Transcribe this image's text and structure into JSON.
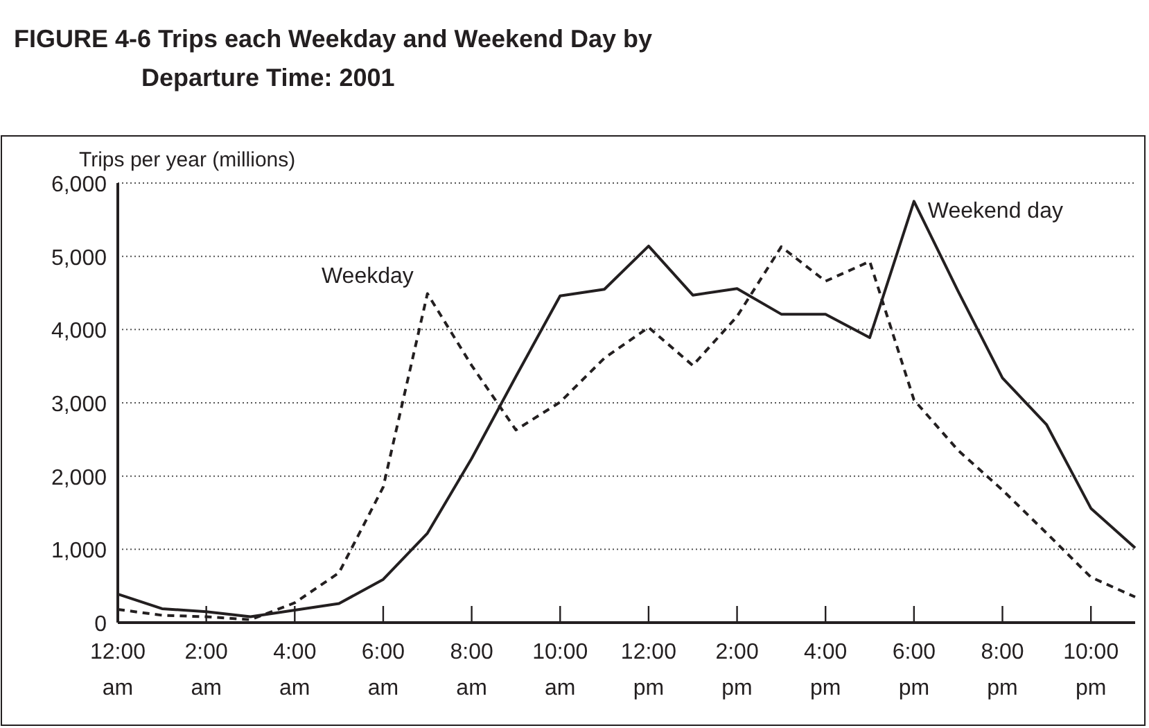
{
  "chart_data": {
    "type": "line",
    "title": "FIGURE 4-6  Trips each Weekday and Weekend Day by Departure Time: 2001",
    "ylabel": "Trips per year (millions)",
    "x": [
      0,
      1,
      2,
      3,
      4,
      5,
      6,
      7,
      8,
      9,
      10,
      11,
      12,
      13,
      14,
      15,
      16,
      17,
      18,
      19,
      20,
      21,
      22,
      23
    ],
    "xlim": [
      0,
      23
    ],
    "xticks": [
      {
        "value": 0,
        "label": "12:00\nam"
      },
      {
        "value": 2,
        "label": "2:00\nam"
      },
      {
        "value": 4,
        "label": "4:00\nam"
      },
      {
        "value": 6,
        "label": "6:00\nam"
      },
      {
        "value": 8,
        "label": "8:00\nam"
      },
      {
        "value": 10,
        "label": "10:00\nam"
      },
      {
        "value": 12,
        "label": "12:00\npm"
      },
      {
        "value": 14,
        "label": "2:00\npm"
      },
      {
        "value": 16,
        "label": "4:00\npm"
      },
      {
        "value": 18,
        "label": "6:00\npm"
      },
      {
        "value": 20,
        "label": "8:00\npm"
      },
      {
        "value": 22,
        "label": "10:00\npm"
      }
    ],
    "ylim": [
      0,
      6000
    ],
    "yticks": [
      {
        "value": 0,
        "label": "0"
      },
      {
        "value": 1000,
        "label": "1,000"
      },
      {
        "value": 2000,
        "label": "2,000"
      },
      {
        "value": 3000,
        "label": "3,000"
      },
      {
        "value": 4000,
        "label": "4,000"
      },
      {
        "value": 5000,
        "label": "5,000"
      },
      {
        "value": 6000,
        "label": "6,000"
      }
    ],
    "grid": "y",
    "marker": "none",
    "series": [
      {
        "name": "Weekday",
        "color": "#231f20",
        "line_style": "dashed",
        "values": [
          180,
          100,
          80,
          40,
          270,
          680,
          1850,
          4490,
          3510,
          2630,
          3010,
          3610,
          4030,
          3510,
          4180,
          5130,
          4660,
          4930,
          3040,
          2350,
          1810,
          1220,
          620,
          350
        ]
      },
      {
        "name": "Weekend day",
        "color": "#231f20",
        "line_style": "solid",
        "values": [
          390,
          190,
          150,
          80,
          170,
          260,
          590,
          1220,
          2240,
          3360,
          4460,
          4550,
          5140,
          4470,
          4560,
          4210,
          4210,
          3890,
          5750,
          4520,
          3340,
          2700,
          1560,
          1020
        ]
      }
    ]
  }
}
